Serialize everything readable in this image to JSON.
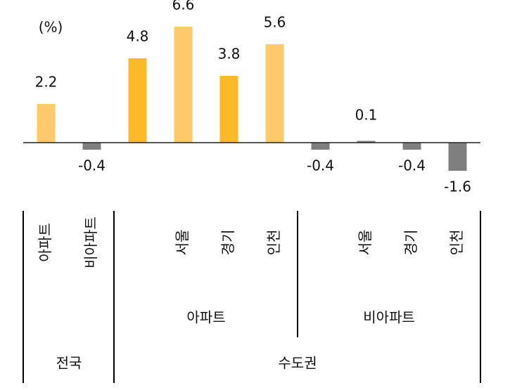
{
  "chart_data": {
    "type": "bar",
    "unit_label": "(%)",
    "categories": [
      "아파트",
      "비아파트",
      null,
      "서울",
      "경기",
      "인천",
      null,
      "서울",
      "경기",
      "인천"
    ],
    "values": [
      2.2,
      -0.4,
      4.8,
      6.6,
      3.8,
      5.6,
      -0.4,
      0.1,
      -0.4,
      -1.6
    ],
    "colors": [
      "#FFCA6B",
      "#7F7F7F",
      "#FDB827",
      "#FFCA6B",
      "#FDB827",
      "#FFCA6B",
      "#7F7F7F",
      "#7F7F7F",
      "#7F7F7F",
      "#7F7F7F"
    ],
    "subgroups": [
      "아파트",
      "비아파트"
    ],
    "groups": [
      "전국",
      "수도권"
    ],
    "ylim": [
      -2,
      7
    ]
  }
}
